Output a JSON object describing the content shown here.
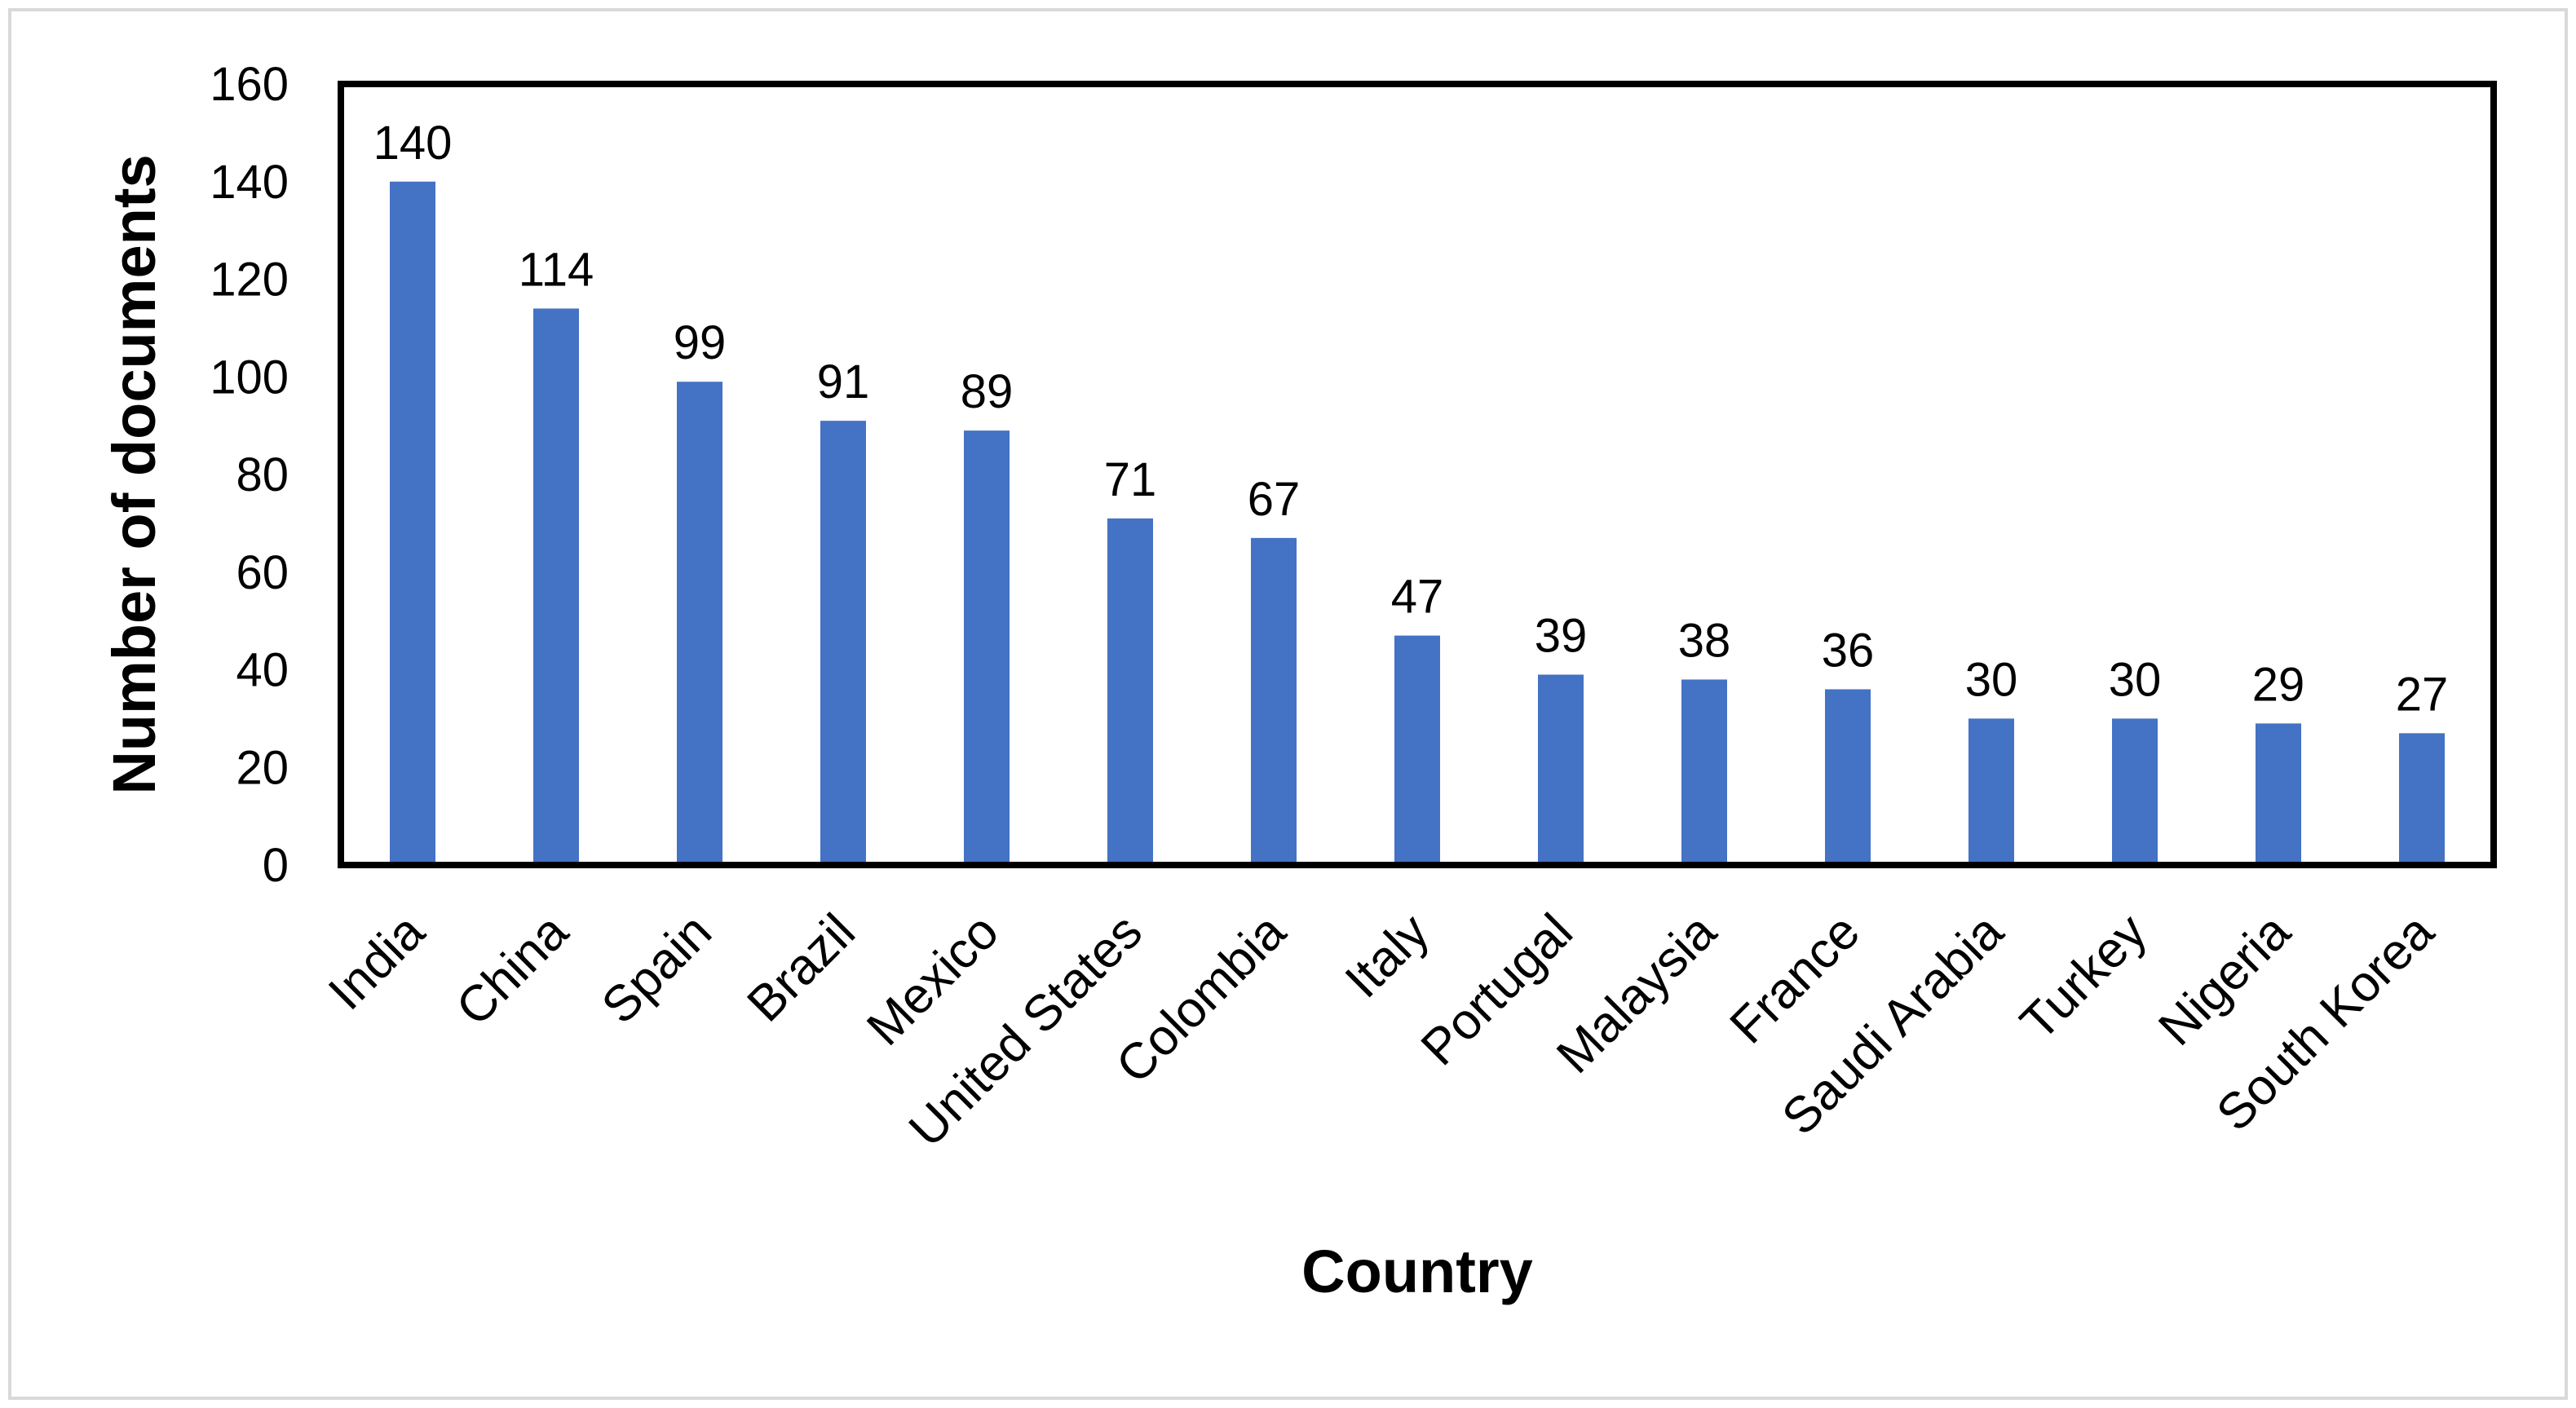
{
  "chart_data": {
    "type": "bar",
    "title": "",
    "xlabel": "Country",
    "ylabel": "Number of documents",
    "categories": [
      "India",
      "China",
      "Spain",
      "Brazil",
      "Mexico",
      "United States",
      "Colombia",
      "Italy",
      "Portugal",
      "Malaysia",
      "France",
      "Saudi Arabia",
      "Turkey",
      "Nigeria",
      "South Korea"
    ],
    "values": [
      140,
      114,
      99,
      91,
      89,
      71,
      67,
      47,
      39,
      38,
      36,
      30,
      30,
      29,
      27
    ],
    "ylim": [
      0,
      160
    ],
    "yticks": [
      0,
      20,
      40,
      60,
      80,
      100,
      120,
      140,
      160
    ],
    "data_labels": true,
    "grid": false,
    "legend": "none",
    "bar_color": "#4472C4",
    "frame_color": "#000000",
    "outer_border_color": "#D9D9D9"
  }
}
